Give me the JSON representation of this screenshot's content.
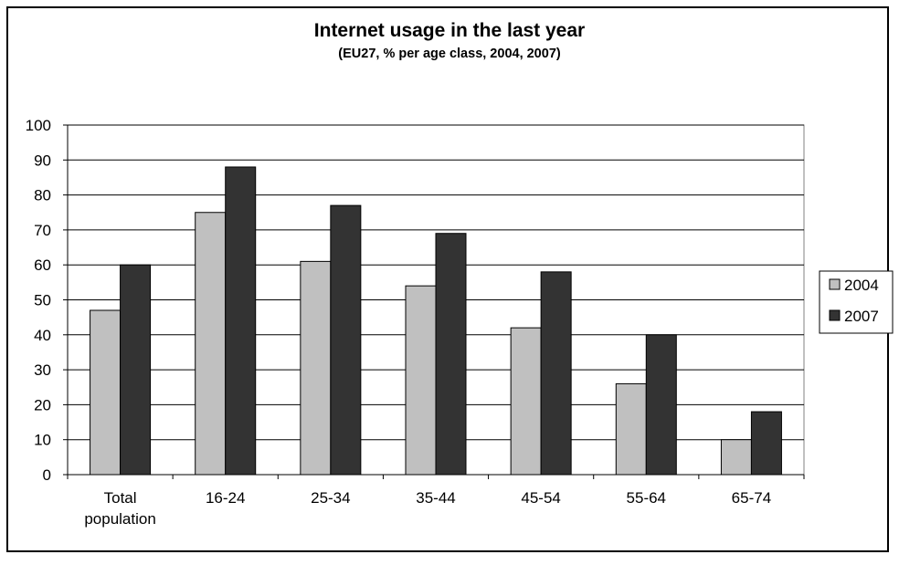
{
  "chart_data": {
    "type": "bar",
    "title": "Internet usage in the last year",
    "subtitle": "(EU27, % per age class, 2004, 2007)",
    "xlabel": "",
    "ylabel": "",
    "ylim": [
      0,
      100
    ],
    "yticks": [
      0,
      10,
      20,
      30,
      40,
      50,
      60,
      70,
      80,
      90,
      100
    ],
    "grid": true,
    "legend_position": "right",
    "categories": [
      "Total population",
      "16-24",
      "25-34",
      "35-44",
      "45-54",
      "55-64",
      "65-74"
    ],
    "series": [
      {
        "name": "2004",
        "color": "#c0c0c0",
        "values": [
          47,
          75,
          61,
          54,
          42,
          26,
          10
        ]
      },
      {
        "name": "2007",
        "color": "#333333",
        "values": [
          60,
          88,
          77,
          69,
          58,
          40,
          18
        ]
      }
    ]
  }
}
